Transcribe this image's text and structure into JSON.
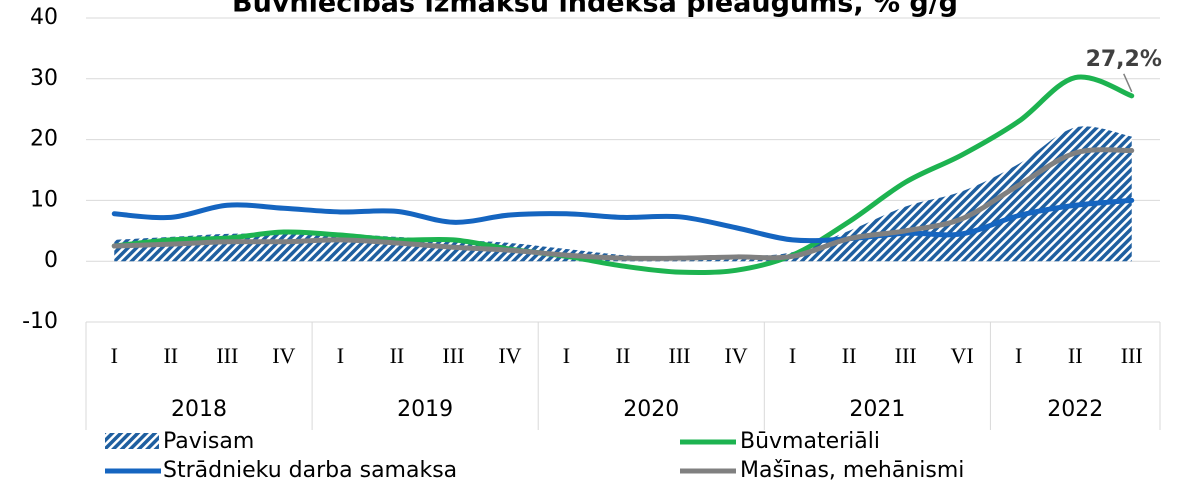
{
  "chart_data": {
    "type": "line",
    "title": "Būvniecības izmaksu indeksa pieaugums, % g/g",
    "groups": [
      {
        "label": "2018",
        "categories": [
          "I",
          "II",
          "III",
          "IV"
        ]
      },
      {
        "label": "2019",
        "categories": [
          "I",
          "II",
          "III",
          "IV"
        ]
      },
      {
        "label": "2020",
        "categories": [
          "I",
          "II",
          "III",
          "IV"
        ]
      },
      {
        "label": "2021",
        "categories": [
          "I",
          "II",
          "III",
          "VI"
        ]
      },
      {
        "label": "2022",
        "categories": [
          "I",
          "II",
          "III"
        ]
      }
    ],
    "ylim": [
      -10,
      40
    ],
    "yticks": [
      -10,
      0,
      10,
      20,
      30,
      40
    ],
    "grid": true,
    "series": [
      {
        "name": "Pavisam",
        "kind": "area",
        "color": "#1f5fa0",
        "values": [
          3.5,
          4,
          4.5,
          4.5,
          4.5,
          4,
          3.5,
          3,
          2,
          1,
          0.5,
          0.8,
          1.5,
          5,
          9,
          11.5,
          16,
          22,
          20.5
        ]
      },
      {
        "name": "Būvmateriāli",
        "color": "#1db350",
        "values": [
          2.5,
          3.5,
          3.8,
          4.8,
          4.3,
          3.5,
          3.5,
          2,
          0.8,
          -0.8,
          -1.8,
          -1.5,
          1,
          6.5,
          13,
          17.5,
          23,
          30.2,
          27.2
        ],
        "value_labels": [
          null,
          null,
          null,
          null,
          null,
          null,
          null,
          null,
          null,
          null,
          null,
          null,
          null,
          null,
          null,
          null,
          null,
          null,
          "27,2%"
        ]
      },
      {
        "name": "Strādnieku darba samaksa",
        "color": "#1565c0",
        "values": [
          7.8,
          7.2,
          9.2,
          8.7,
          8.1,
          8.2,
          6.4,
          7.6,
          7.8,
          7.2,
          7.3,
          5.5,
          3.5,
          3.7,
          4.6,
          4.5,
          7.5,
          9.2,
          10
        ]
      },
      {
        "name": "Mašīnas, mehānismi",
        "color": "#808080",
        "values": [
          2.5,
          2.8,
          3.2,
          3.2,
          3.5,
          3,
          2.3,
          1.8,
          1,
          0.5,
          0.5,
          0.7,
          0.8,
          3.7,
          5,
          7,
          12.5,
          17.8,
          18.2
        ]
      }
    ]
  }
}
